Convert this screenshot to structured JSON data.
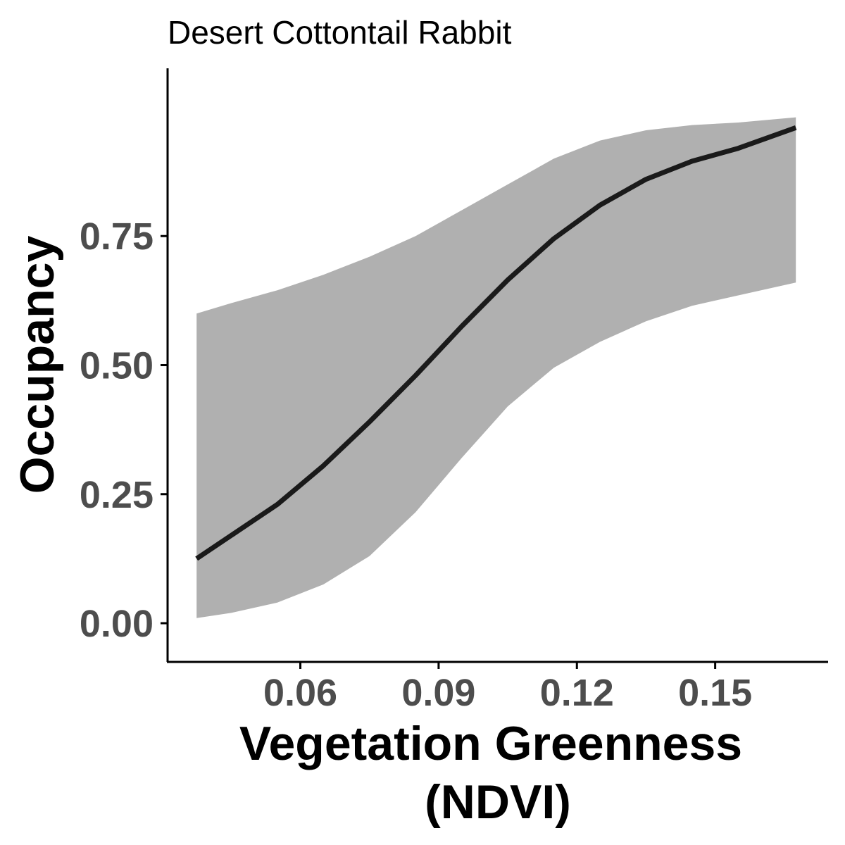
{
  "chart_data": {
    "type": "line",
    "title": "Desert Cottontail Rabbit",
    "xlabel_lines": [
      "Vegetation Greenness",
      "(NDVI)"
    ],
    "ylabel": "Occupancy",
    "xlim": [
      0.0312,
      0.1745
    ],
    "ylim": [
      -0.075,
      1.075
    ],
    "x_ticks": [
      0.06,
      0.09,
      0.12,
      0.15
    ],
    "x_tick_labels": [
      "0.06",
      "0.09",
      "0.12",
      "0.15"
    ],
    "y_ticks": [
      0.0,
      0.25,
      0.5,
      0.75
    ],
    "y_tick_labels": [
      "0.00",
      "0.25",
      "0.50",
      "0.75"
    ],
    "grid": false,
    "legend": "none",
    "colors": {
      "line": "#1a1a1a",
      "ribbon": "#b0b0b0"
    },
    "series": [
      {
        "x": [
          0.0375,
          0.045,
          0.055,
          0.065,
          0.075,
          0.085,
          0.095,
          0.105,
          0.115,
          0.125,
          0.135,
          0.145,
          0.155,
          0.1675
        ],
        "y": [
          0.125,
          0.17,
          0.23,
          0.305,
          0.39,
          0.48,
          0.575,
          0.665,
          0.745,
          0.81,
          0.86,
          0.895,
          0.92,
          0.96
        ],
        "lower": [
          0.01,
          0.02,
          0.04,
          0.075,
          0.13,
          0.215,
          0.32,
          0.42,
          0.495,
          0.545,
          0.585,
          0.615,
          0.635,
          0.66
        ],
        "upper": [
          0.6,
          0.62,
          0.645,
          0.675,
          0.71,
          0.75,
          0.8,
          0.85,
          0.9,
          0.935,
          0.955,
          0.965,
          0.97,
          0.98
        ]
      }
    ]
  }
}
